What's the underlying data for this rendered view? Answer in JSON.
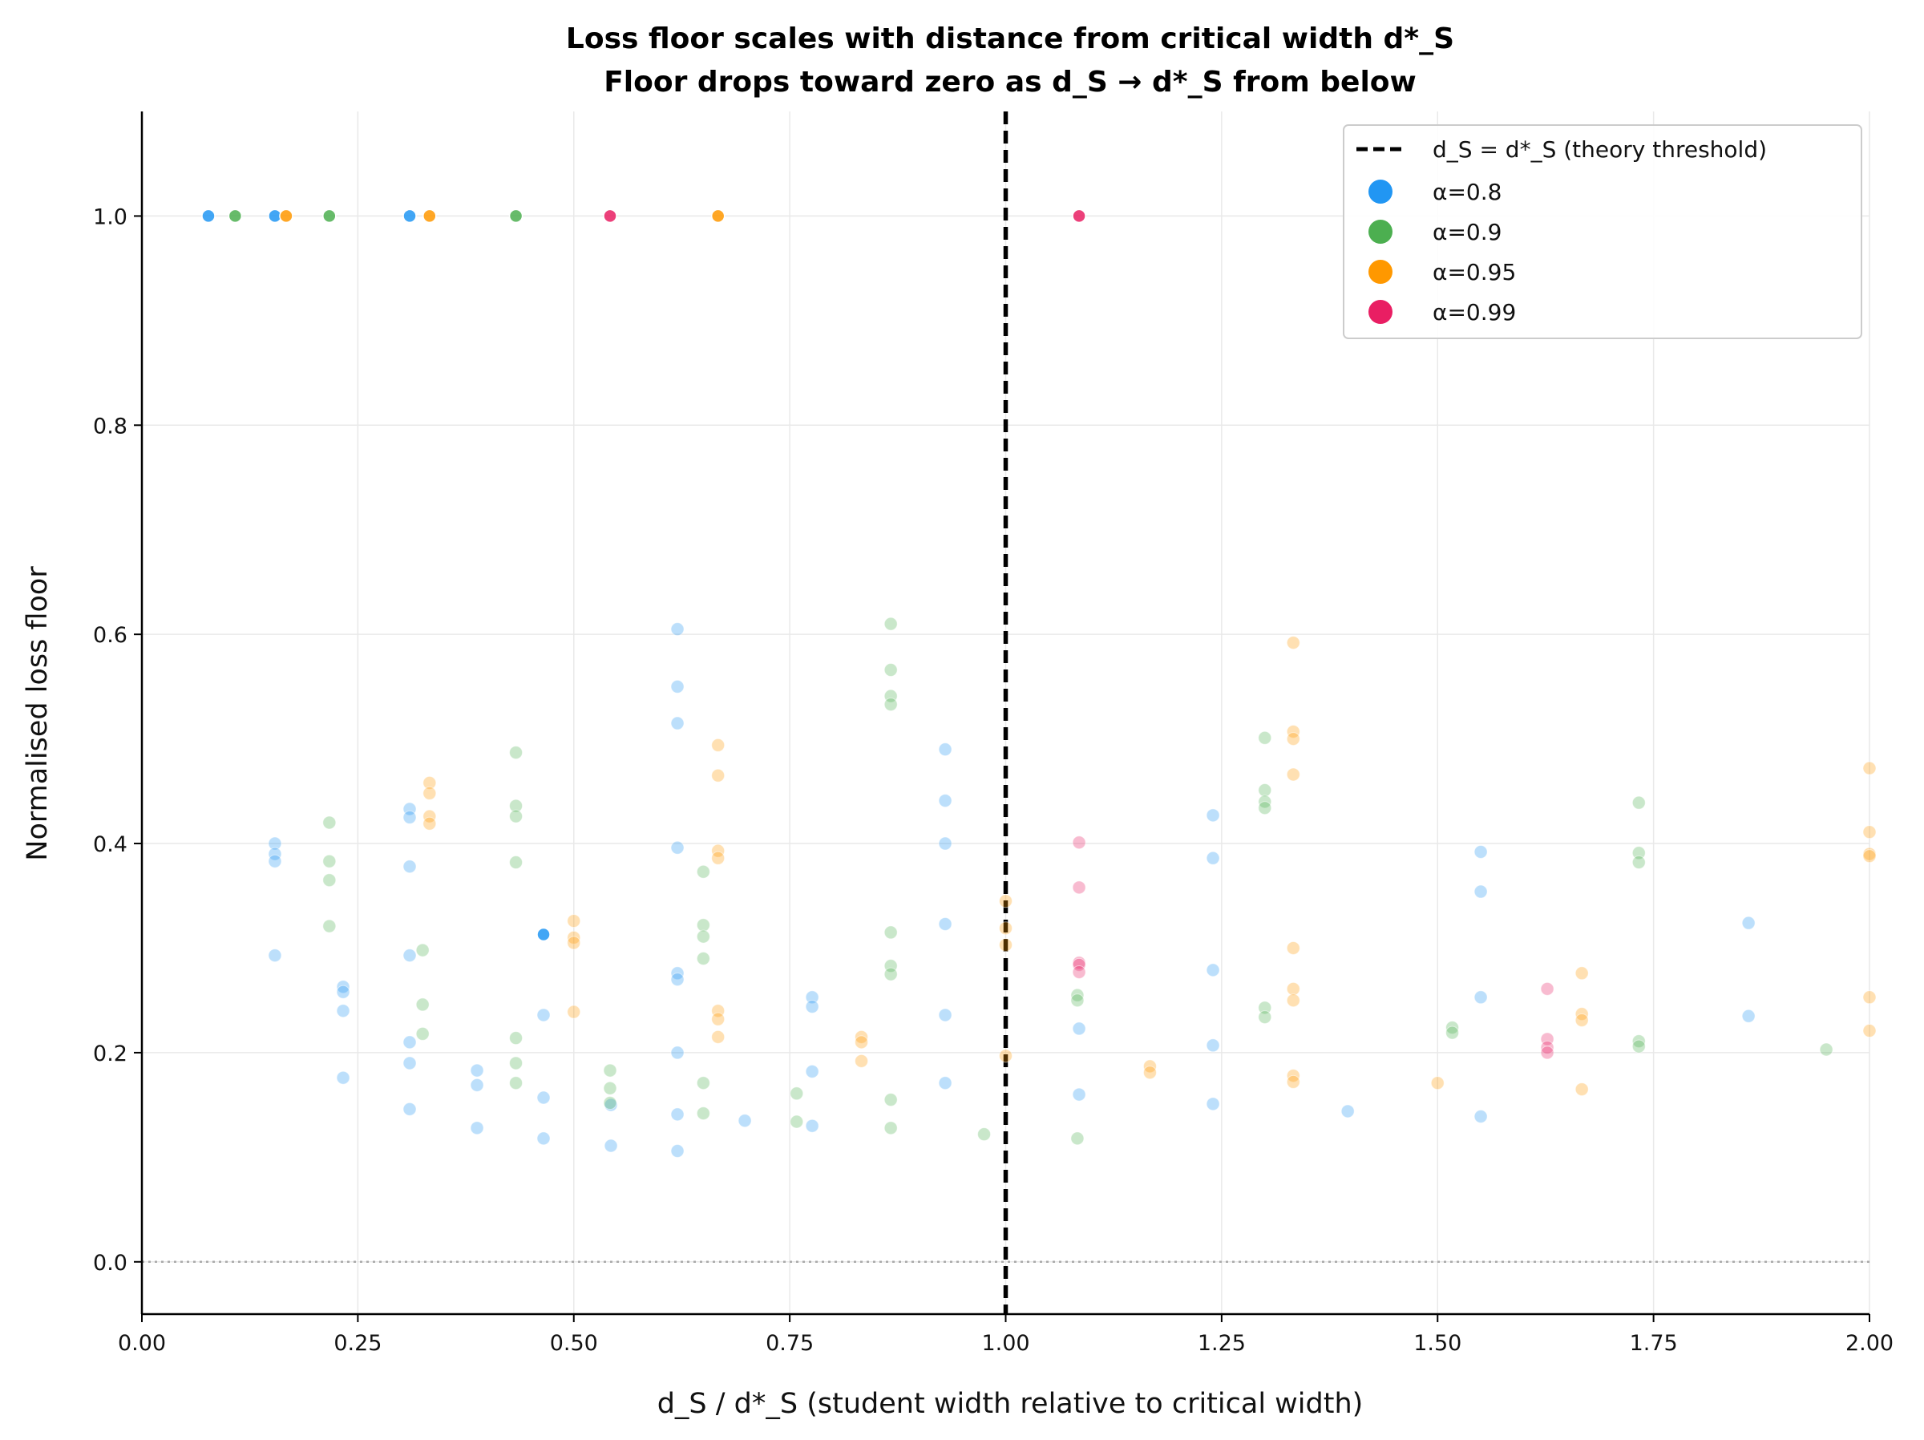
{
  "chart_data": {
    "type": "scatter",
    "title": "Loss floor scales with distance from critical width d*_S",
    "subtitle": "Floor drops toward zero as d_S → d*_S from below",
    "xlabel": "d_S / d*_S  (student width relative to critical width)",
    "ylabel": "Normalised loss floor",
    "xlim": [
      0.0,
      2.0
    ],
    "ylim": [
      -0.05,
      1.1
    ],
    "x_ticks": [
      "0.00",
      "0.25",
      "0.50",
      "0.75",
      "1.00",
      "1.25",
      "1.50",
      "1.75",
      "2.00"
    ],
    "y_ticks": [
      "0.0",
      "0.2",
      "0.4",
      "0.6",
      "0.8",
      "1.0"
    ],
    "grid": true,
    "legend_position": "top-right",
    "threshold": {
      "x": 1.0,
      "label": "d_S = d*_S (theory threshold)",
      "color": "#000000",
      "style": "dashed"
    },
    "zero_reference": {
      "y": 0.0,
      "style": "dotted",
      "color": "#aaaaaa"
    },
    "series": [
      {
        "name": "α=0.8",
        "color": "#2196F3",
        "highlight": [
          [
            0.077,
            1.0
          ],
          [
            0.154,
            1.0
          ],
          [
            0.31,
            1.0
          ],
          [
            0.465,
            0.313
          ]
        ],
        "faded": [
          [
            0.154,
            0.4
          ],
          [
            0.154,
            0.39
          ],
          [
            0.154,
            0.383
          ],
          [
            0.154,
            0.293
          ],
          [
            0.233,
            0.263
          ],
          [
            0.233,
            0.258
          ],
          [
            0.233,
            0.24
          ],
          [
            0.233,
            0.176
          ],
          [
            0.31,
            0.433
          ],
          [
            0.31,
            0.425
          ],
          [
            0.31,
            0.378
          ],
          [
            0.31,
            0.293
          ],
          [
            0.31,
            0.21
          ],
          [
            0.31,
            0.19
          ],
          [
            0.31,
            0.146
          ],
          [
            0.388,
            0.183
          ],
          [
            0.388,
            0.169
          ],
          [
            0.388,
            0.128
          ],
          [
            0.465,
            0.236
          ],
          [
            0.465,
            0.157
          ],
          [
            0.465,
            0.118
          ],
          [
            0.543,
            0.15
          ],
          [
            0.543,
            0.111
          ],
          [
            0.62,
            0.605
          ],
          [
            0.62,
            0.55
          ],
          [
            0.62,
            0.515
          ],
          [
            0.62,
            0.396
          ],
          [
            0.62,
            0.276
          ],
          [
            0.62,
            0.27
          ],
          [
            0.62,
            0.2
          ],
          [
            0.62,
            0.141
          ],
          [
            0.62,
            0.106
          ],
          [
            0.698,
            0.135
          ],
          [
            0.776,
            0.253
          ],
          [
            0.776,
            0.244
          ],
          [
            0.776,
            0.182
          ],
          [
            0.776,
            0.13
          ],
          [
            0.93,
            0.49
          ],
          [
            0.93,
            0.441
          ],
          [
            0.93,
            0.4
          ],
          [
            0.93,
            0.323
          ],
          [
            0.93,
            0.236
          ],
          [
            0.93,
            0.171
          ],
          [
            1.085,
            0.223
          ],
          [
            1.085,
            0.16
          ],
          [
            1.24,
            0.427
          ],
          [
            1.24,
            0.386
          ],
          [
            1.24,
            0.279
          ],
          [
            1.24,
            0.207
          ],
          [
            1.24,
            0.151
          ],
          [
            1.396,
            0.144
          ],
          [
            1.55,
            0.392
          ],
          [
            1.55,
            0.354
          ],
          [
            1.55,
            0.253
          ],
          [
            1.55,
            0.139
          ],
          [
            1.86,
            0.324
          ],
          [
            1.86,
            0.235
          ]
        ]
      },
      {
        "name": "α=0.9",
        "color": "#4CAF50",
        "highlight": [
          [
            0.108,
            1.0
          ],
          [
            0.217,
            1.0
          ],
          [
            0.433,
            1.0
          ]
        ],
        "faded": [
          [
            0.217,
            0.42
          ],
          [
            0.217,
            0.383
          ],
          [
            0.217,
            0.365
          ],
          [
            0.217,
            0.321
          ],
          [
            0.325,
            0.298
          ],
          [
            0.325,
            0.246
          ],
          [
            0.325,
            0.218
          ],
          [
            0.433,
            0.487
          ],
          [
            0.433,
            0.436
          ],
          [
            0.433,
            0.426
          ],
          [
            0.433,
            0.382
          ],
          [
            0.433,
            0.214
          ],
          [
            0.433,
            0.19
          ],
          [
            0.433,
            0.171
          ],
          [
            0.542,
            0.183
          ],
          [
            0.542,
            0.166
          ],
          [
            0.542,
            0.152
          ],
          [
            0.65,
            0.373
          ],
          [
            0.65,
            0.322
          ],
          [
            0.65,
            0.311
          ],
          [
            0.65,
            0.29
          ],
          [
            0.65,
            0.171
          ],
          [
            0.65,
            0.142
          ],
          [
            0.758,
            0.161
          ],
          [
            0.758,
            0.134
          ],
          [
            0.867,
            0.61
          ],
          [
            0.867,
            0.566
          ],
          [
            0.867,
            0.541
          ],
          [
            0.867,
            0.533
          ],
          [
            0.867,
            0.315
          ],
          [
            0.867,
            0.283
          ],
          [
            0.867,
            0.275
          ],
          [
            0.867,
            0.155
          ],
          [
            0.867,
            0.128
          ],
          [
            0.975,
            0.122
          ],
          [
            1.083,
            0.255
          ],
          [
            1.083,
            0.25
          ],
          [
            1.083,
            0.118
          ],
          [
            1.3,
            0.501
          ],
          [
            1.3,
            0.451
          ],
          [
            1.3,
            0.44
          ],
          [
            1.3,
            0.434
          ],
          [
            1.3,
            0.243
          ],
          [
            1.3,
            0.234
          ],
          [
            1.517,
            0.224
          ],
          [
            1.517,
            0.219
          ],
          [
            1.733,
            0.439
          ],
          [
            1.733,
            0.391
          ],
          [
            1.733,
            0.382
          ],
          [
            1.733,
            0.211
          ],
          [
            1.733,
            0.206
          ],
          [
            1.95,
            0.203
          ]
        ]
      },
      {
        "name": "α=0.95",
        "color": "#FF9800",
        "highlight": [
          [
            0.167,
            1.0
          ],
          [
            0.333,
            1.0
          ],
          [
            0.667,
            1.0
          ]
        ],
        "faded": [
          [
            0.333,
            0.458
          ],
          [
            0.333,
            0.448
          ],
          [
            0.333,
            0.426
          ],
          [
            0.333,
            0.419
          ],
          [
            0.5,
            0.326
          ],
          [
            0.5,
            0.31
          ],
          [
            0.5,
            0.305
          ],
          [
            0.5,
            0.239
          ],
          [
            0.667,
            0.494
          ],
          [
            0.667,
            0.465
          ],
          [
            0.667,
            0.393
          ],
          [
            0.667,
            0.386
          ],
          [
            0.667,
            0.24
          ],
          [
            0.667,
            0.232
          ],
          [
            0.667,
            0.215
          ],
          [
            0.833,
            0.215
          ],
          [
            0.833,
            0.21
          ],
          [
            0.833,
            0.192
          ],
          [
            1.0,
            0.345
          ],
          [
            1.0,
            0.319
          ],
          [
            1.0,
            0.303
          ],
          [
            1.0,
            0.197
          ],
          [
            1.167,
            0.187
          ],
          [
            1.167,
            0.181
          ],
          [
            1.333,
            0.592
          ],
          [
            1.333,
            0.507
          ],
          [
            1.333,
            0.5
          ],
          [
            1.333,
            0.466
          ],
          [
            1.333,
            0.3
          ],
          [
            1.333,
            0.261
          ],
          [
            1.333,
            0.25
          ],
          [
            1.333,
            0.178
          ],
          [
            1.333,
            0.172
          ],
          [
            1.5,
            0.171
          ],
          [
            1.667,
            0.276
          ],
          [
            1.667,
            0.237
          ],
          [
            1.667,
            0.231
          ],
          [
            1.667,
            0.165
          ],
          [
            2.0,
            0.472
          ],
          [
            2.0,
            0.411
          ],
          [
            2.0,
            0.39
          ],
          [
            2.0,
            0.388
          ],
          [
            2.0,
            0.253
          ],
          [
            2.0,
            0.221
          ]
        ]
      },
      {
        "name": "α=0.99",
        "color": "#E91E63",
        "highlight": [
          [
            0.542,
            1.0
          ],
          [
            1.085,
            1.0
          ]
        ],
        "faded": [
          [
            1.085,
            0.401
          ],
          [
            1.085,
            0.358
          ],
          [
            1.085,
            0.286
          ],
          [
            1.085,
            0.284
          ],
          [
            1.085,
            0.277
          ],
          [
            1.627,
            0.261
          ],
          [
            1.627,
            0.213
          ],
          [
            1.627,
            0.205
          ],
          [
            1.627,
            0.2
          ]
        ]
      }
    ]
  }
}
